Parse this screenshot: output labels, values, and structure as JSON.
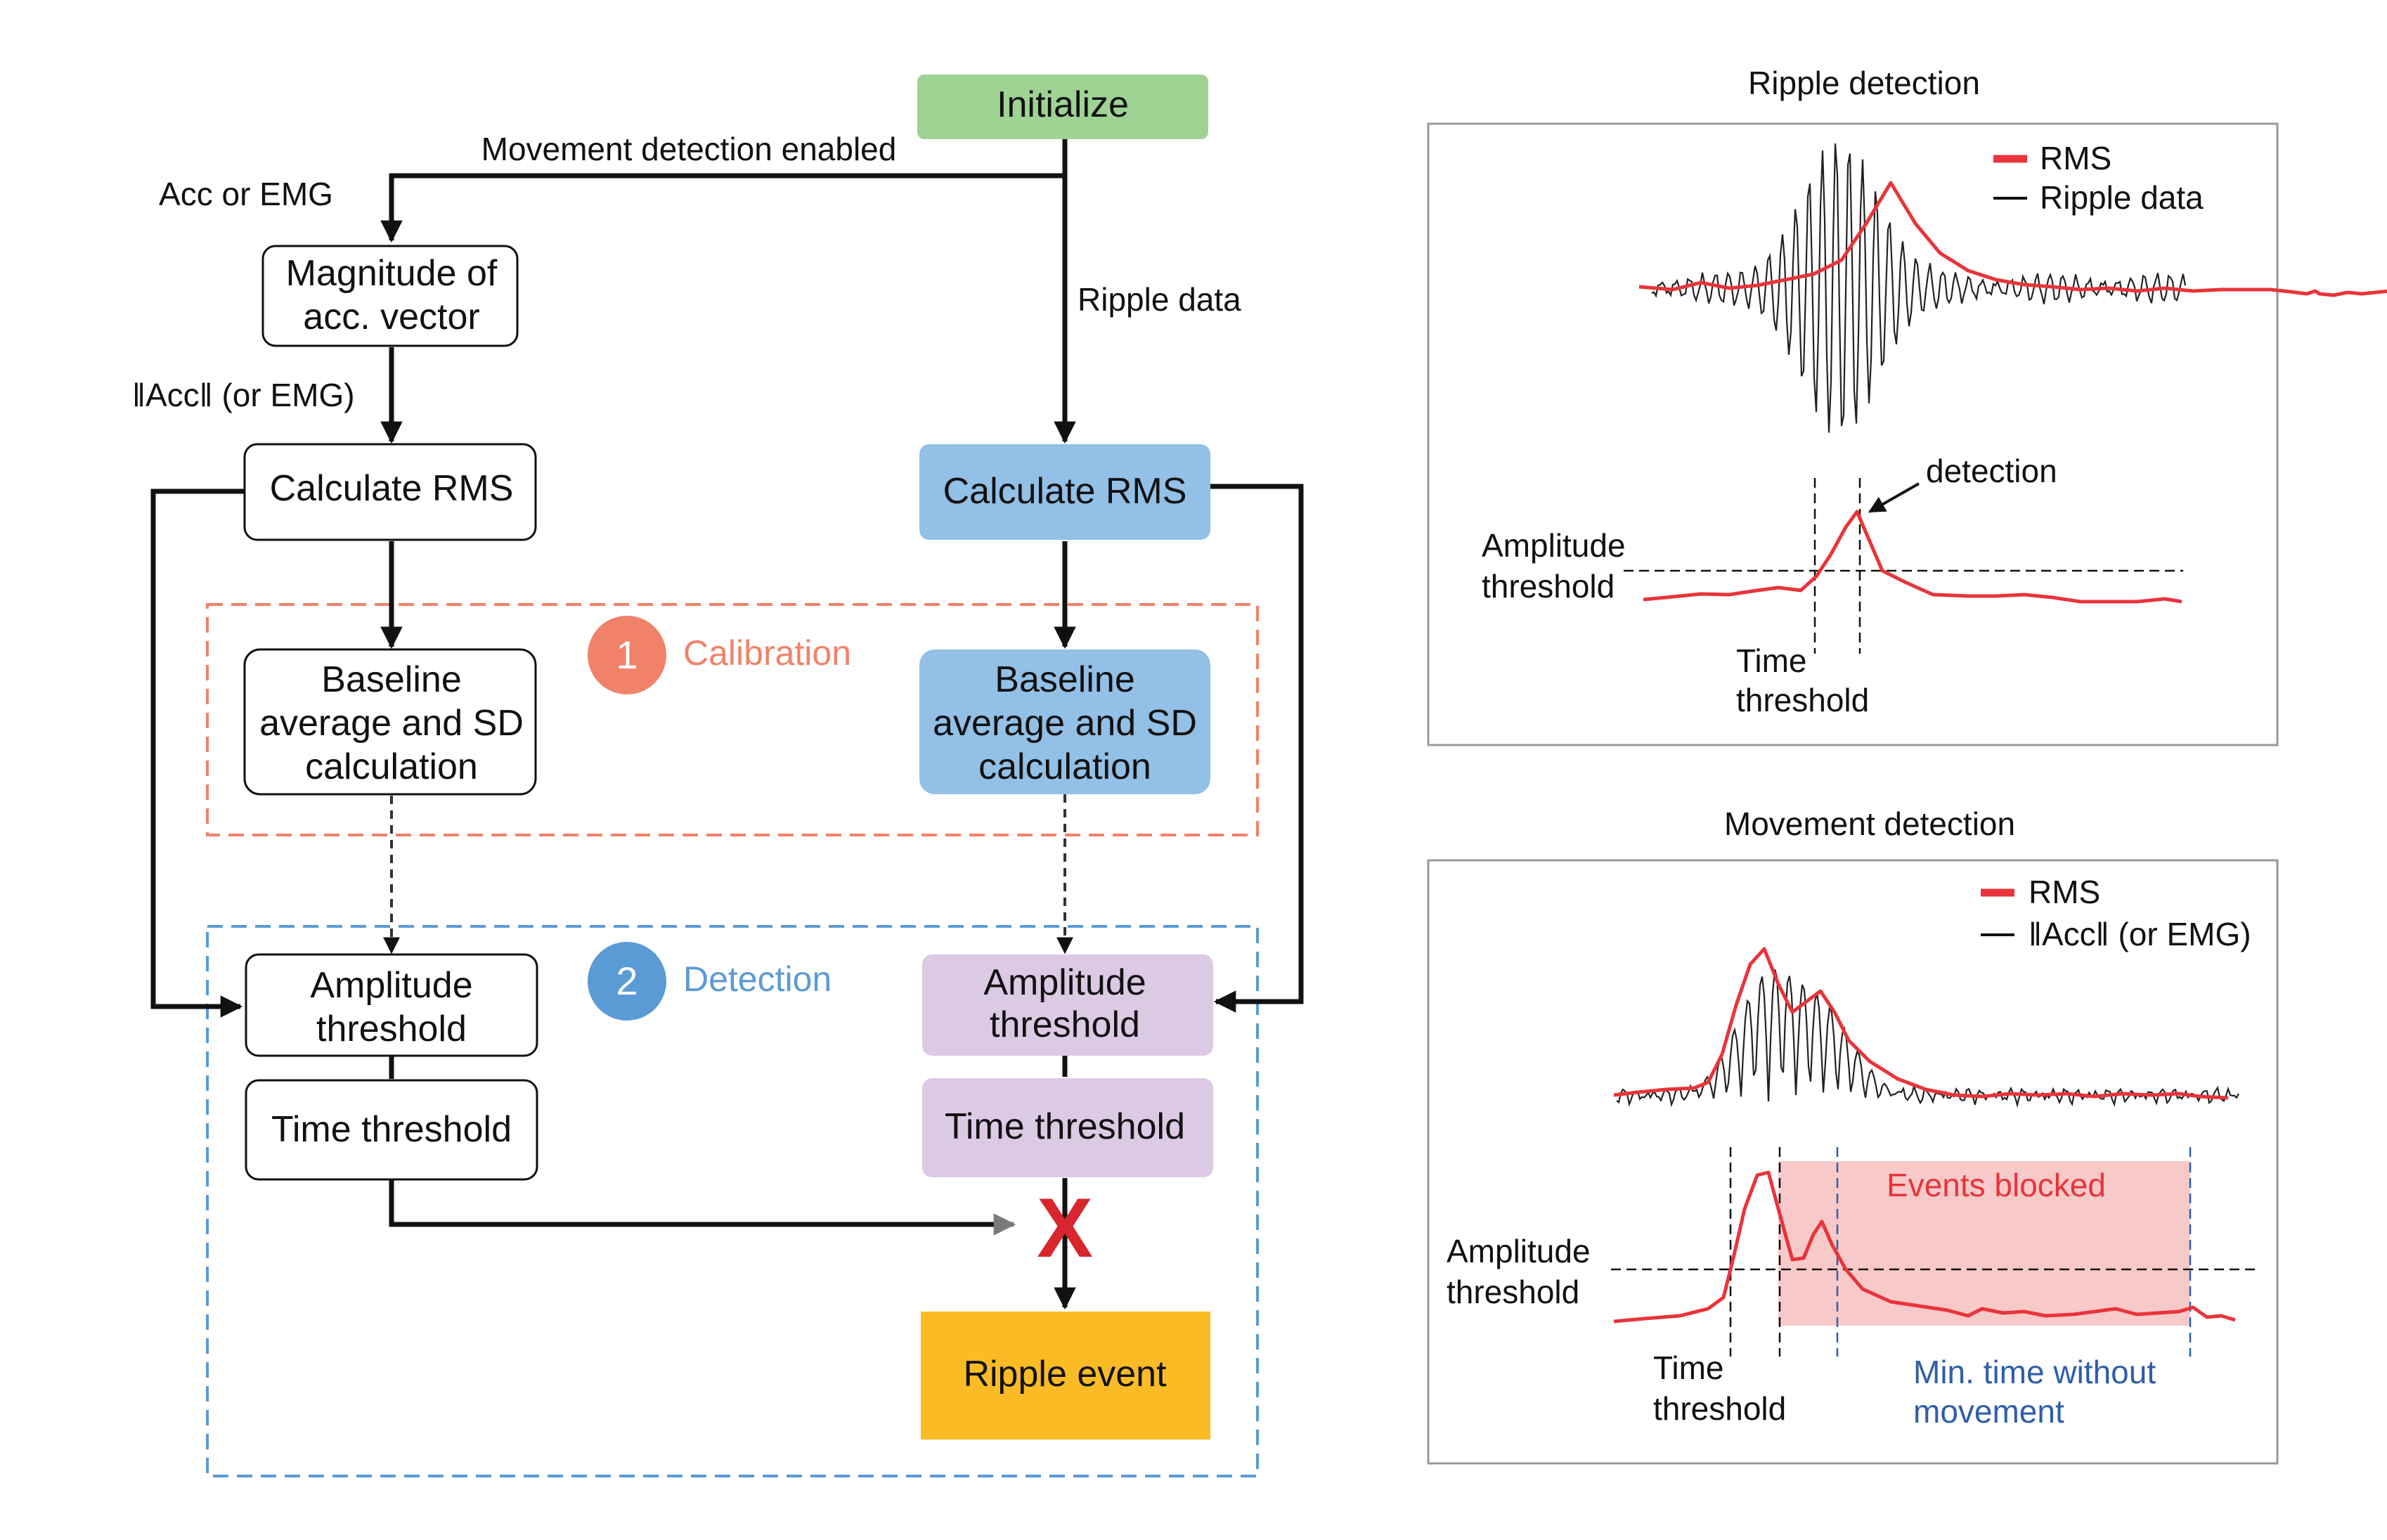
{
  "flowchart": {
    "initialize": "Initialize",
    "movement_enabled": "Movement detection enabled",
    "acc_or_emg": "Acc or EMG",
    "ripple_data": "Ripple data",
    "magnitude_line1": "Magnitude of",
    "magnitude_line2": "acc. vector",
    "accnorm_label": "ǁAccǁ (or EMG)",
    "left": {
      "rms": "Calculate RMS",
      "baseline_line1": "Baseline",
      "baseline_line2": "average and SD",
      "baseline_line3": "calculation",
      "amp_line1": "Amplitude",
      "amp_line2": "threshold",
      "time": "Time threshold"
    },
    "right": {
      "rms": "Calculate RMS",
      "baseline_line1": "Baseline",
      "baseline_line2": "average and SD",
      "baseline_line3": "calculation",
      "amp_line1": "Amplitude",
      "amp_line2": "threshold",
      "time": "Time threshold"
    },
    "calibration_number": "1",
    "calibration_label": "Calibration",
    "detection_number": "2",
    "detection_label": "Detection",
    "block_mark": "X",
    "ripple_event": "Ripple event"
  },
  "ripple_panel": {
    "title": "Ripple detection",
    "legend_rms": "RMS",
    "legend_data": "Ripple data",
    "detection": "detection",
    "amp_line1": "Amplitude",
    "amp_line2": "threshold",
    "time_line1": "Time",
    "time_line2": "threshold"
  },
  "movement_panel": {
    "title": "Movement detection",
    "legend_rms": "RMS",
    "legend_data": "ǁAccǁ (or EMG)",
    "events_blocked": "Events blocked",
    "amp_line1": "Amplitude",
    "amp_line2": "threshold",
    "time_line1": "Time",
    "time_line2": "threshold",
    "min_time_line1": "Min. time without",
    "min_time_line2": "movement"
  },
  "colors": {
    "initialize": "#9ed393",
    "blue_box": "#92c0e6",
    "purple_box": "#dcc9e4",
    "ripple_event": "#fbbb24",
    "calibration": "#f0826a",
    "detection": "#5b9bd5",
    "rms_line": "#e8343a",
    "blocked_fill": "#f8c9c9",
    "min_time_text": "#2f5ea8",
    "block_mark": "#d9262e"
  }
}
